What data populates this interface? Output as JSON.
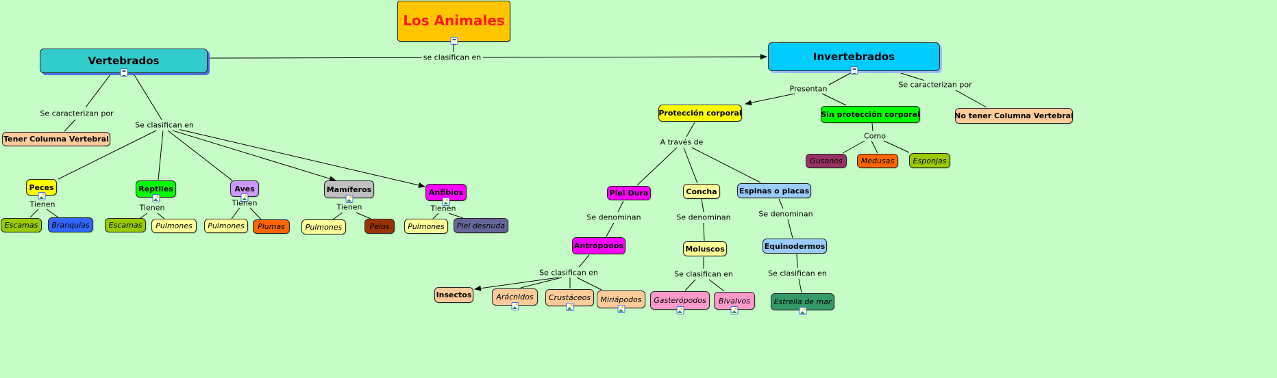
{
  "nodes": {
    "title": {
      "label": "Los Animales",
      "color": "#ffc600",
      "icon": "document-icon"
    },
    "vert": {
      "label": "Vertebrados",
      "color": "#33cccc",
      "icon": "document-icon"
    },
    "invert": {
      "label": "Invertebrados",
      "color": "#00ccff",
      "icon": "document-icon"
    },
    "tener_col": {
      "label": "Tener Columna Vertebral",
      "color": "#ffcc99"
    },
    "peces": {
      "label": "Peces",
      "color": "#ffff00",
      "icon": "image-icon"
    },
    "reptiles": {
      "label": "Reptiles",
      "color": "#00ff00",
      "icon": "image-icon"
    },
    "aves": {
      "label": "Aves",
      "color": "#cc99ff",
      "icon": "image-icon"
    },
    "mamiferos": {
      "label": "Mamíferos",
      "color": "#c0c0c0",
      "icon": "image-icon"
    },
    "anfibios": {
      "label": "Anfibios",
      "color": "#ff00ff",
      "icon": "image-icon"
    },
    "escamas1": {
      "label": "Escamas",
      "color": "#99cc00"
    },
    "branquias": {
      "label": "Branquias",
      "color": "#3366ff"
    },
    "escamas2": {
      "label": "Escamas",
      "color": "#99cc00"
    },
    "pulmones1": {
      "label": "Pulmones",
      "color": "#ffff99"
    },
    "pulmones2": {
      "label": "Pulmones",
      "color": "#ffff99"
    },
    "plumas": {
      "label": "Plumas",
      "color": "#ff6600"
    },
    "pulmones3": {
      "label": "Pulmones",
      "color": "#ffff99"
    },
    "pelos": {
      "label": "Pelos",
      "color": "#993300"
    },
    "pulmones4": {
      "label": "Pulmones",
      "color": "#ffff99"
    },
    "piel_desnuda": {
      "label": "Piel desnuda",
      "color": "#666699"
    },
    "proteccion": {
      "label": "Protección corporal",
      "color": "#ffff00"
    },
    "sin_proteccion": {
      "label": "Sin protección corporal",
      "color": "#00ff00"
    },
    "no_tener_col": {
      "label": "No tener Columna Vertebral",
      "color": "#ffcc99"
    },
    "gusanos": {
      "label": "Gusanos",
      "color": "#993366"
    },
    "medusas": {
      "label": "Medusas",
      "color": "#ff6600"
    },
    "esponjas": {
      "label": "Esponjas",
      "color": "#99cc00"
    },
    "piel_dura": {
      "label": "Piel Dura",
      "color": "#ff00ff"
    },
    "concha": {
      "label": "Concha",
      "color": "#ffff99"
    },
    "espinas": {
      "label": "Espinas o placas",
      "color": "#99ccff"
    },
    "antropodos": {
      "label": "Antrópodos",
      "color": "#ff00ff"
    },
    "moluscos": {
      "label": "Moluscos",
      "color": "#ffff99"
    },
    "equinodermos": {
      "label": "Equinodermos",
      "color": "#99ccff"
    },
    "insectos": {
      "label": "Insectos",
      "color": "#ffcc99"
    },
    "aracnidos": {
      "label": "Arácnidos",
      "color": "#ffcc99",
      "icon": "image-icon"
    },
    "crustaceos": {
      "label": "Crustáceos",
      "color": "#ffcc99",
      "icon": "image-icon"
    },
    "miriapodos": {
      "label": "Miriápodos",
      "color": "#ffcc99",
      "icon": "image-icon"
    },
    "gasteropodos": {
      "label": "Gasterópodos",
      "color": "#ff99cc",
      "icon": "image-icon"
    },
    "bivalvos": {
      "label": "Bivalvos",
      "color": "#ff99cc",
      "icon": "image-icon"
    },
    "estrella": {
      "label": "Estrella de mar",
      "color": "#339966",
      "icon": "image-icon"
    }
  },
  "links": {
    "main": "se clasifican en",
    "vert_car": "Se caracterizan por",
    "vert_clas": "Se clasifican en",
    "peces_t": "Tienen",
    "reptiles_t": "Tienen",
    "aves_t": "Tienen",
    "mamiferos_t": "Tienen",
    "anfibios_t": "Tienen",
    "presentan": "Presentan",
    "inv_car": "Se caracterizan por",
    "como": "Como",
    "traves": "A través de",
    "den1": "Se denominan",
    "den2": "Se denominan",
    "den3": "Se denominan",
    "clas1": "Se clasifican en",
    "clas2": "Se clasifican en",
    "clas3": "Se clasifican en"
  }
}
